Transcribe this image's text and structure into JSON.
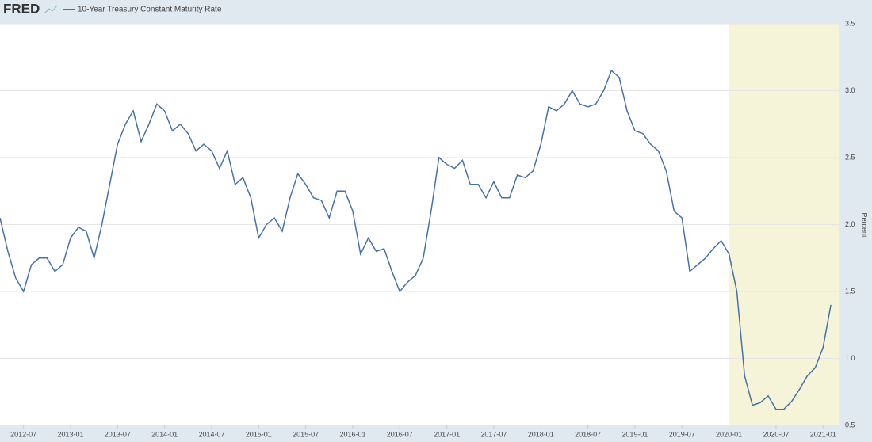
{
  "header": {
    "logo": "FRED"
  },
  "chart_data": {
    "type": "line",
    "y_label": "Percent",
    "xlim": [
      "2012-04",
      "2021-03"
    ],
    "xticks": [
      "2012-07",
      "2013-01",
      "2013-07",
      "2014-01",
      "2014-07",
      "2015-01",
      "2015-07",
      "2016-01",
      "2016-07",
      "2017-01",
      "2017-07",
      "2018-01",
      "2018-07",
      "2019-01",
      "2019-07",
      "2020-01",
      "2020-07",
      "2021-01"
    ],
    "ylim": [
      0.5,
      3.5
    ],
    "yticks": [
      0.5,
      {
        "value": 1,
        "label": "1.0"
      },
      1.5,
      {
        "value": 2,
        "label": "2.0"
      },
      2.5,
      {
        "value": 3,
        "label": "3.0"
      },
      3.5
    ],
    "grid": true,
    "shading": [
      "2020-01",
      "2021-03"
    ],
    "x": [
      "2012-04",
      "2012-05",
      "2012-06",
      "2012-07",
      "2012-08",
      "2012-09",
      "2012-10",
      "2012-11",
      "2012-12",
      "2013-01",
      "2013-02",
      "2013-03",
      "2013-04",
      "2013-05",
      "2013-06",
      "2013-07",
      "2013-08",
      "2013-09",
      "2013-10",
      "2013-11",
      "2013-12",
      "2014-01",
      "2014-02",
      "2014-03",
      "2014-04",
      "2014-05",
      "2014-06",
      "2014-07",
      "2014-08",
      "2014-09",
      "2014-10",
      "2014-11",
      "2014-12",
      "2015-01",
      "2015-02",
      "2015-03",
      "2015-04",
      "2015-05",
      "2015-06",
      "2015-07",
      "2015-08",
      "2015-09",
      "2015-10",
      "2015-11",
      "2015-12",
      "2016-01",
      "2016-02",
      "2016-03",
      "2016-04",
      "2016-05",
      "2016-06",
      "2016-07",
      "2016-08",
      "2016-09",
      "2016-10",
      "2016-11",
      "2016-12",
      "2017-01",
      "2017-02",
      "2017-03",
      "2017-04",
      "2017-05",
      "2017-06",
      "2017-07",
      "2017-08",
      "2017-09",
      "2017-10",
      "2017-11",
      "2017-12",
      "2018-01",
      "2018-02",
      "2018-03",
      "2018-04",
      "2018-05",
      "2018-06",
      "2018-07",
      "2018-08",
      "2018-09",
      "2018-10",
      "2018-11",
      "2018-12",
      "2019-01",
      "2019-02",
      "2019-03",
      "2019-04",
      "2019-05",
      "2019-06",
      "2019-07",
      "2019-08",
      "2019-09",
      "2019-10",
      "2019-11",
      "2019-12",
      "2020-01",
      "2020-02",
      "2020-03",
      "2020-04",
      "2020-05",
      "2020-06",
      "2020-07",
      "2020-08",
      "2020-09",
      "2020-10",
      "2020-11",
      "2020-12",
      "2021-01",
      "2021-02"
    ],
    "series": [
      {
        "name": "10-Year Treasury Constant Maturity Rate",
        "color": "#4572a7",
        "values": [
          2.05,
          1.8,
          1.6,
          1.5,
          1.7,
          1.75,
          1.75,
          1.65,
          1.7,
          1.9,
          1.98,
          1.95,
          1.75,
          2.0,
          2.3,
          2.6,
          2.75,
          2.85,
          2.62,
          2.75,
          2.9,
          2.85,
          2.7,
          2.75,
          2.68,
          2.55,
          2.6,
          2.55,
          2.42,
          2.55,
          2.3,
          2.35,
          2.2,
          1.9,
          2.0,
          2.05,
          1.95,
          2.2,
          2.38,
          2.3,
          2.2,
          2.18,
          2.05,
          2.25,
          2.25,
          2.1,
          1.78,
          1.9,
          1.8,
          1.82,
          1.65,
          1.5,
          1.57,
          1.62,
          1.75,
          2.1,
          2.5,
          2.45,
          2.42,
          2.48,
          2.3,
          2.3,
          2.2,
          2.32,
          2.2,
          2.2,
          2.37,
          2.35,
          2.4,
          2.6,
          2.88,
          2.85,
          2.9,
          3.0,
          2.9,
          2.88,
          2.9,
          3.0,
          3.15,
          3.1,
          2.85,
          2.7,
          2.68,
          2.6,
          2.55,
          2.4,
          2.1,
          2.05,
          1.65,
          1.7,
          1.75,
          1.82,
          1.88,
          1.78,
          1.5,
          0.87,
          0.65,
          0.67,
          0.72,
          0.62,
          0.62,
          0.68,
          0.77,
          0.87,
          0.93,
          1.08,
          1.4
        ]
      }
    ]
  }
}
